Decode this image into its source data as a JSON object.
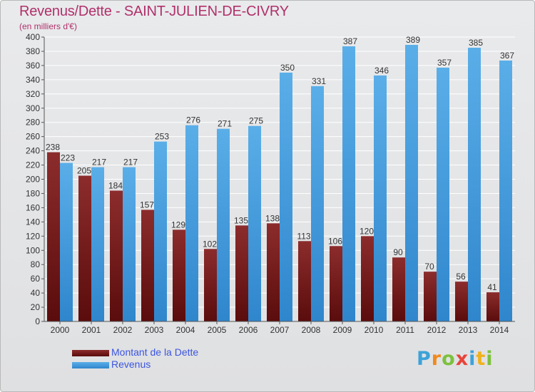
{
  "header": {
    "title": "Revenus/Dette - SAINT-JULIEN-DE-CIVRY",
    "subtitle": "(en milliers d'€)"
  },
  "legend": {
    "items": [
      {
        "label": "Montant de la Dette",
        "color": "#7a1e1e"
      },
      {
        "label": "Revenus",
        "color": "#3f9be0"
      }
    ]
  },
  "logo": {
    "text": "Proxiti"
  },
  "colors": {
    "debt_top": "#8c2c2c",
    "debt_bottom": "#5a0c0c",
    "rev_top": "#5aaee8",
    "rev_bottom": "#2f86cc",
    "axis": "#555555",
    "grid": "#ffffff",
    "label": "#333333"
  },
  "chart_data": {
    "type": "bar",
    "title": "Revenus/Dette - SAINT-JULIEN-DE-CIVRY",
    "subtitle": "(en milliers d'€)",
    "categories": [
      "2000",
      "2001",
      "2002",
      "2003",
      "2004",
      "2005",
      "2006",
      "2007",
      "2008",
      "2009",
      "2010",
      "2011",
      "2012",
      "2013",
      "2014"
    ],
    "series": [
      {
        "name": "Montant de la Dette",
        "values": [
          238,
          205,
          184,
          157,
          129,
          102,
          135,
          138,
          113,
          106,
          120,
          90,
          70,
          56,
          41
        ]
      },
      {
        "name": "Revenus",
        "values": [
          223,
          217,
          217,
          253,
          276,
          271,
          275,
          350,
          331,
          387,
          346,
          389,
          357,
          385,
          367
        ]
      }
    ],
    "ylim": [
      0,
      400
    ],
    "yticks": [
      0,
      20,
      40,
      60,
      80,
      100,
      120,
      140,
      160,
      180,
      200,
      220,
      240,
      260,
      280,
      300,
      320,
      340,
      360,
      380,
      400
    ],
    "grid": true,
    "legend_position": "bottom-left"
  }
}
